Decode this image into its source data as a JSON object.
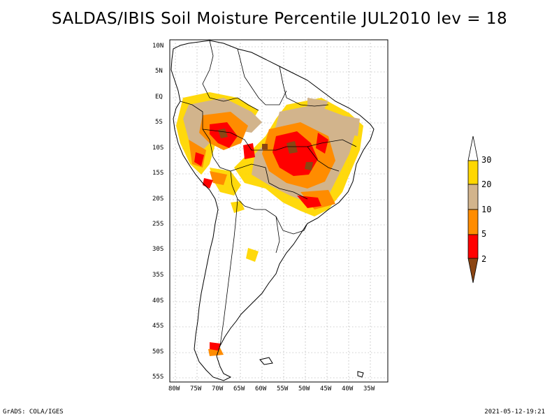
{
  "title": "SALDAS/IBIS Soil Moisture Percentile JUL2010 lev = 18",
  "map": {
    "lat_labels": [
      "10N",
      "5N",
      "EQ",
      "5S",
      "10S",
      "15S",
      "20S",
      "25S",
      "30S",
      "35S",
      "40S",
      "45S",
      "50S",
      "55S"
    ],
    "lon_labels": [
      "80W",
      "75W",
      "70W",
      "65W",
      "60W",
      "55W",
      "50W",
      "45W",
      "40W",
      "35W"
    ]
  },
  "legend": {
    "levels": [
      "2",
      "5",
      "10",
      "20",
      "30"
    ],
    "colors": {
      "below_2": "#8b4513",
      "2_5": "#ff0000",
      "5_10": "#ff8c00",
      "10_20": "#d2b48c",
      "20_30": "#ffd700",
      "above_30": "#ffffff"
    }
  },
  "footer": {
    "credit": "GrADS: COLA/IGES",
    "timestamp": "2021-05-12-19:21"
  }
}
